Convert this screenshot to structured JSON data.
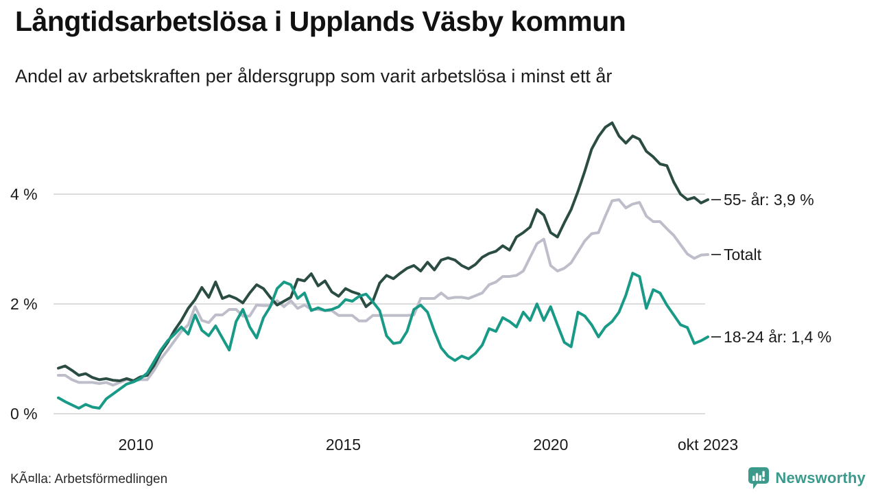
{
  "chart_data": {
    "type": "line",
    "title": "Långtidsarbetslösa i Upplands Väsby kommun",
    "subtitle": "Andel av arbetskraften per åldersgrupp som varit arbetslösa i minst ett år",
    "unit": "%",
    "grid": "horizontal",
    "x_domain": [
      2008.13,
      2023.79
    ],
    "ylim": [
      0,
      5.8
    ],
    "x_ticks": [
      {
        "label": "2010",
        "t": 2010
      },
      {
        "label": "2015",
        "t": 2015
      },
      {
        "label": "2020",
        "t": 2020
      },
      {
        "label": "okt 2023",
        "t": 2023.79
      }
    ],
    "y_ticks": [
      {
        "label": "0 %",
        "v": 0
      },
      {
        "label": "2 %",
        "v": 2
      },
      {
        "label": "4 %",
        "v": 4
      }
    ],
    "series": [
      {
        "name": "Totalt",
        "end_label": "Totalt",
        "color": "#bdbeca",
        "values": [
          0.7,
          0.7,
          0.62,
          0.57,
          0.57,
          0.57,
          0.55,
          0.57,
          0.52,
          0.57,
          0.62,
          0.6,
          0.62,
          0.62,
          0.79,
          1.0,
          1.16,
          1.33,
          1.5,
          1.62,
          1.95,
          1.7,
          1.66,
          1.8,
          1.8,
          1.9,
          1.9,
          1.78,
          1.78,
          1.98,
          1.97,
          1.97,
          2.06,
          1.95,
          2.06,
          1.92,
          1.98,
          1.9,
          1.9,
          1.88,
          1.88,
          1.79,
          1.79,
          1.79,
          1.69,
          1.69,
          1.79,
          1.79,
          1.79,
          1.79,
          1.79,
          1.79,
          1.8,
          2.1,
          2.1,
          2.1,
          2.2,
          2.1,
          2.12,
          2.12,
          2.1,
          2.15,
          2.2,
          2.35,
          2.4,
          2.5,
          2.5,
          2.52,
          2.6,
          2.85,
          3.1,
          3.18,
          2.7,
          2.6,
          2.65,
          2.75,
          2.95,
          3.15,
          3.28,
          3.3,
          3.6,
          3.88,
          3.9,
          3.75,
          3.82,
          3.85,
          3.6,
          3.5,
          3.5,
          3.37,
          3.25,
          3.08,
          2.91,
          2.83,
          2.89,
          2.9
        ]
      },
      {
        "name": "55- år",
        "end_label": "55- år: 3,9 %",
        "last_value_text": "3,9 %",
        "color": "#2b4c43",
        "values": [
          0.83,
          0.87,
          0.79,
          0.7,
          0.73,
          0.66,
          0.62,
          0.64,
          0.61,
          0.6,
          0.64,
          0.6,
          0.67,
          0.7,
          0.88,
          1.12,
          1.3,
          1.52,
          1.7,
          1.92,
          2.08,
          2.3,
          2.12,
          2.4,
          2.1,
          2.15,
          2.1,
          2.02,
          2.2,
          2.35,
          2.28,
          2.12,
          1.98,
          2.05,
          2.12,
          2.45,
          2.42,
          2.55,
          2.33,
          2.42,
          2.22,
          2.14,
          2.28,
          2.22,
          2.18,
          1.95,
          2.05,
          2.38,
          2.52,
          2.46,
          2.56,
          2.65,
          2.7,
          2.6,
          2.76,
          2.62,
          2.8,
          2.84,
          2.8,
          2.7,
          2.64,
          2.72,
          2.85,
          2.92,
          2.96,
          3.06,
          2.98,
          3.22,
          3.3,
          3.4,
          3.72,
          3.62,
          3.3,
          3.22,
          3.48,
          3.72,
          4.05,
          4.42,
          4.82,
          5.05,
          5.22,
          5.3,
          5.06,
          4.93,
          5.06,
          5.0,
          4.78,
          4.68,
          4.55,
          4.52,
          4.22,
          4.0,
          3.9,
          3.94,
          3.84,
          3.9
        ]
      },
      {
        "name": "18-24 år",
        "end_label": "18-24 år: 1,4 %",
        "last_value_text": "1,4 %",
        "color": "#189a87",
        "values": [
          0.29,
          0.22,
          0.16,
          0.1,
          0.17,
          0.12,
          0.1,
          0.27,
          0.36,
          0.45,
          0.54,
          0.58,
          0.64,
          0.74,
          0.95,
          1.16,
          1.33,
          1.45,
          1.58,
          1.45,
          1.8,
          1.52,
          1.42,
          1.6,
          1.38,
          1.16,
          1.68,
          1.9,
          1.58,
          1.38,
          1.75,
          1.95,
          2.28,
          2.4,
          2.35,
          2.1,
          2.2,
          1.88,
          1.93,
          1.88,
          1.9,
          1.95,
          2.08,
          2.05,
          2.14,
          2.18,
          2.04,
          1.88,
          1.42,
          1.28,
          1.3,
          1.5,
          1.9,
          1.98,
          1.85,
          1.5,
          1.2,
          1.05,
          0.97,
          1.05,
          1.0,
          1.1,
          1.25,
          1.55,
          1.5,
          1.75,
          1.68,
          1.58,
          1.85,
          1.7,
          2.0,
          1.7,
          1.95,
          1.62,
          1.3,
          1.22,
          1.85,
          1.78,
          1.62,
          1.4,
          1.58,
          1.68,
          1.85,
          2.16,
          2.56,
          2.5,
          1.92,
          2.26,
          2.2,
          1.98,
          1.8,
          1.62,
          1.57,
          1.28,
          1.33,
          1.4
        ]
      }
    ]
  },
  "footer": {
    "source": "KÃ¤lla: Arbetsförmedlingen",
    "brand": "Newsworthy"
  },
  "colors": {
    "brand": "#3c9a8c",
    "gridline": "#dcdcdc",
    "end_dash": "#444444"
  }
}
